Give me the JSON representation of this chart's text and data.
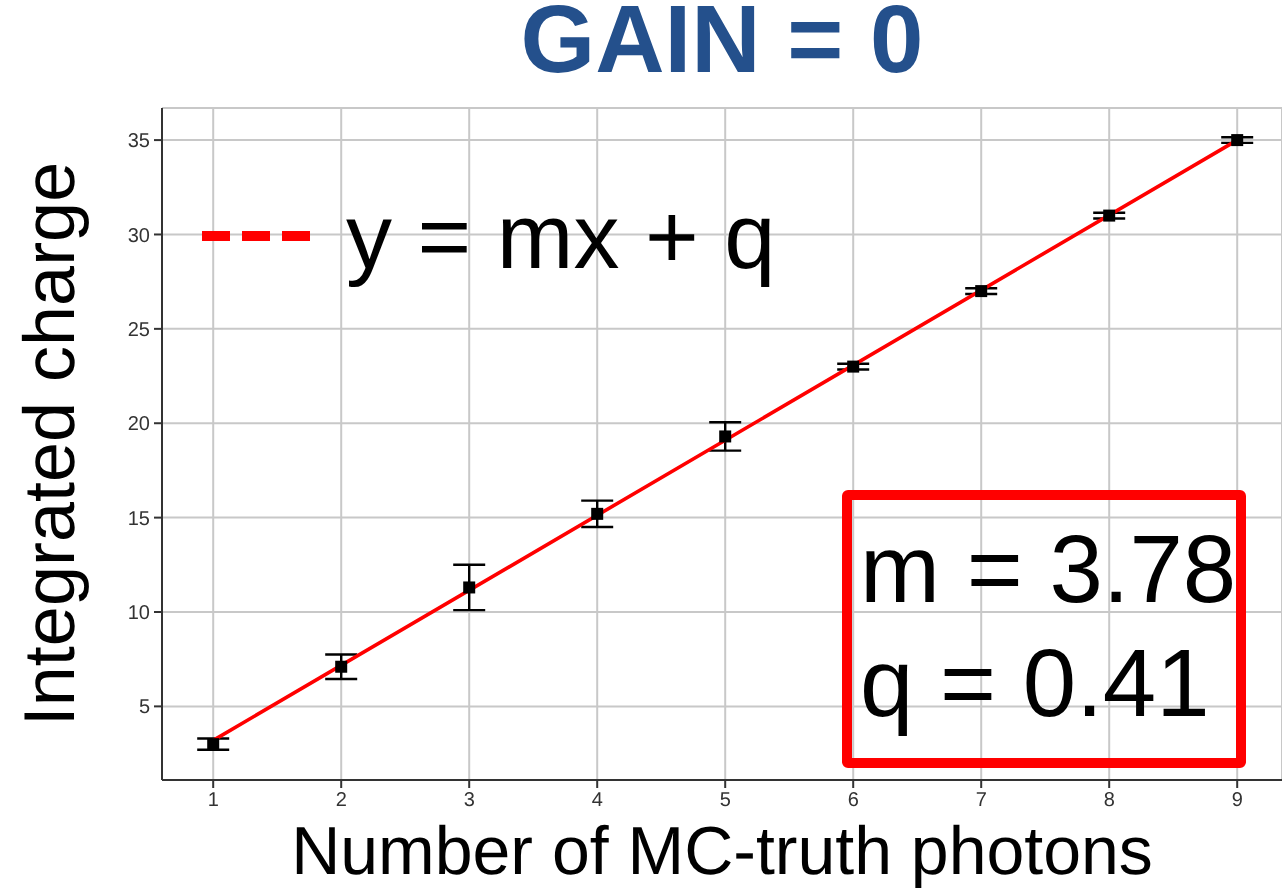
{
  "chart_data": {
    "type": "scatter",
    "title": "GAIN = 0",
    "xlabel": "Number of MC-truth photons",
    "ylabel": "Integrated charge",
    "annotations": [
      "m = 3.78",
      "q = 0.41"
    ],
    "series": [
      {
        "color": "#000000",
        "marker": "square",
        "x": [
          1,
          2,
          3,
          4,
          5,
          6,
          7,
          8,
          9
        ],
        "values": [
          3.0,
          7.1,
          11.3,
          15.2,
          19.3,
          23.0,
          27.0,
          31.0,
          35.0
        ],
        "errors": [
          0.3,
          0.65,
          1.2,
          0.7,
          0.75,
          0.15,
          0.15,
          0.15,
          0.15
        ]
      },
      {
        "type": "line",
        "name": "y = mx + q",
        "color": "#ff0000",
        "x": [
          1,
          9
        ],
        "values": [
          3.2,
          35.0
        ]
      }
    ],
    "xlim": [
      0.6,
      9.35
    ],
    "ylim": [
      1.1,
      36.7
    ],
    "xticks": [
      1,
      2,
      3,
      4,
      5,
      6,
      7,
      8,
      9
    ],
    "yticks": [
      5,
      10,
      15,
      20,
      25,
      30,
      35
    ],
    "grid": true,
    "legend": "top left"
  }
}
